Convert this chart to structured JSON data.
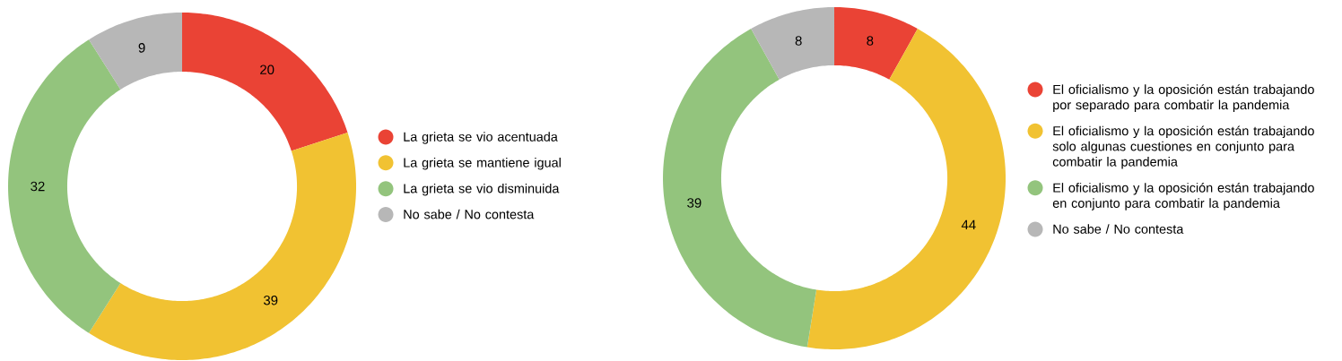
{
  "chart_data": [
    {
      "type": "donut",
      "categories": [
        "La grieta se vio acentuada",
        "La grieta se mantiene igual",
        "La grieta se vio disminuida",
        "No sabe / No contesta"
      ],
      "values": [
        20,
        39,
        32,
        9
      ],
      "colors": [
        "#ea4335",
        "#f1c232",
        "#93c47d",
        "#b7b7b7"
      ],
      "data_labels": true,
      "legend": "right"
    },
    {
      "type": "donut",
      "categories": [
        "El oficialismo y la oposición están trabajando por separado para combatir la pandemia",
        "El oficialismo y la oposición están trabajando solo algunas cuestiones en conjunto para combatir la pandemia",
        "El oficialismo y la oposición están trabajando en conjunto para combatir la pandemia",
        "No sabe / No contesta"
      ],
      "values": [
        8,
        44,
        39,
        8
      ],
      "colors": [
        "#ea4335",
        "#f1c232",
        "#93c47d",
        "#b7b7b7"
      ],
      "data_labels": true,
      "legend": "right"
    }
  ]
}
